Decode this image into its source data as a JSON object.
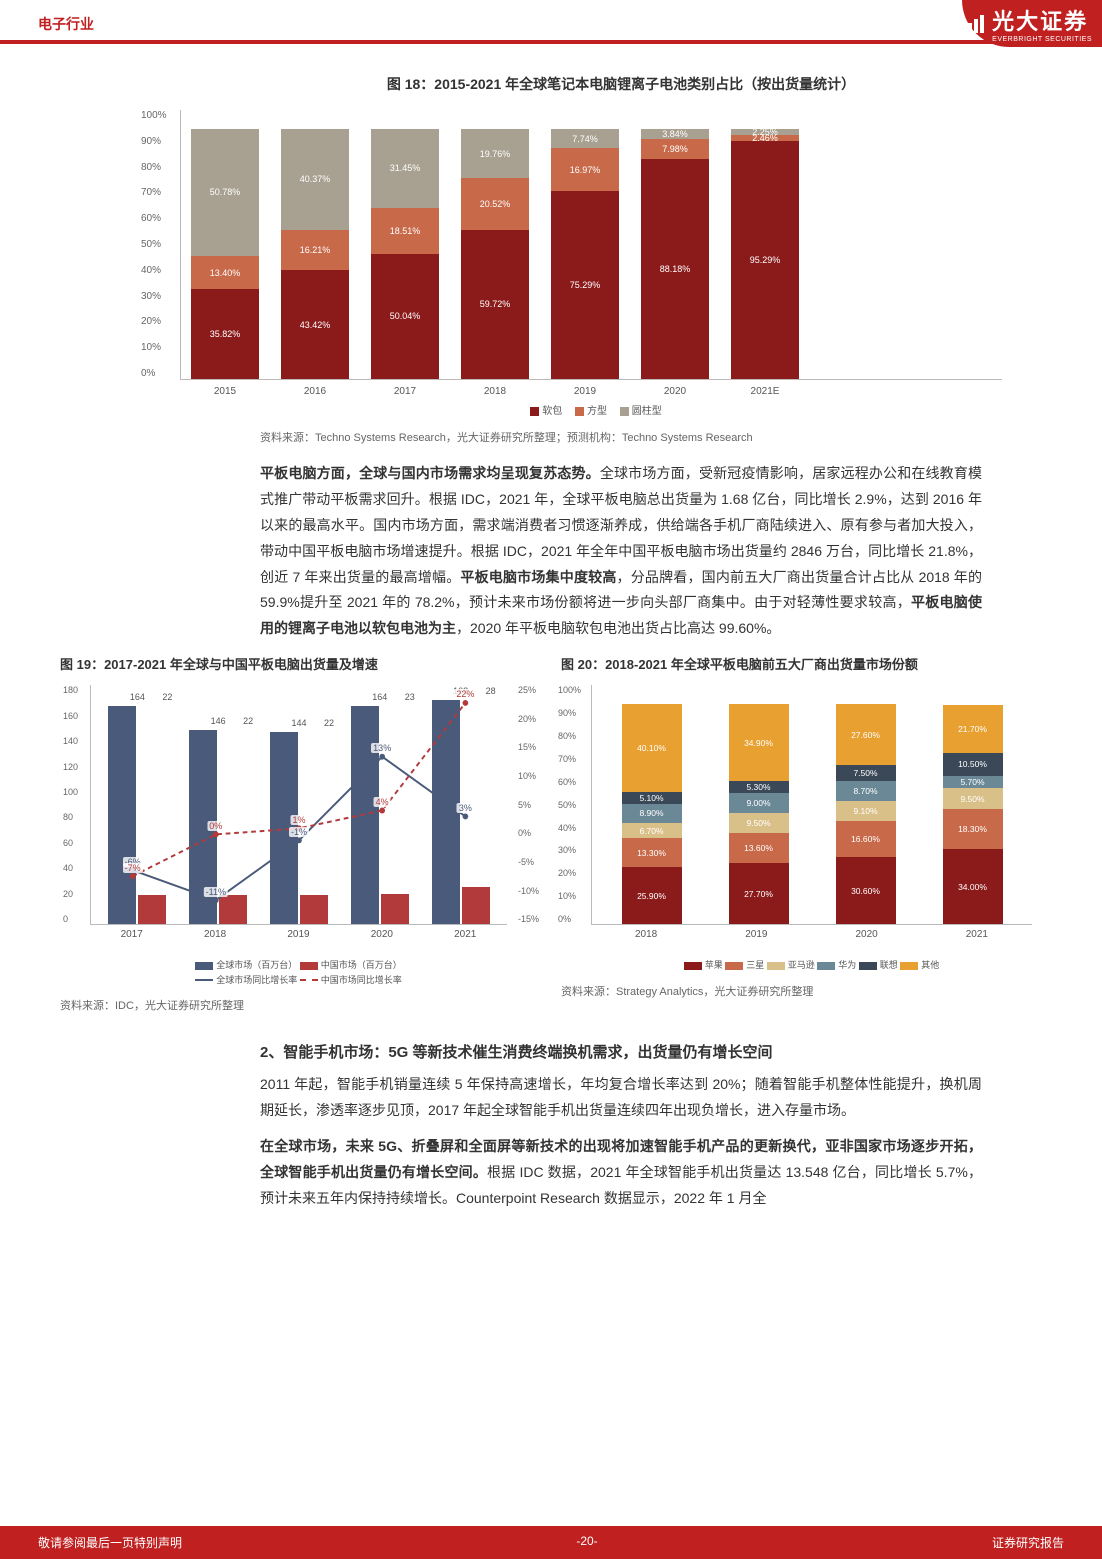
{
  "header": {
    "industry": "电子行业"
  },
  "logo": {
    "name": "光大证券",
    "sub": "EVERBRIGHT SECURITIES"
  },
  "chart18": {
    "title": "图 18：2015-2021 年全球笔记本电脑锂离子电池类别占比（按出货量统计）",
    "type": "stacked-bar",
    "ylim": [
      0,
      100
    ],
    "ytick_step": 10,
    "categories": [
      "2015",
      "2016",
      "2017",
      "2018",
      "2019",
      "2020",
      "2021E"
    ],
    "series_names": [
      "软包",
      "方型",
      "圆柱型"
    ],
    "series_colors": [
      "#8b1a1a",
      "#c86a4a",
      "#a8a090"
    ],
    "data": [
      {
        "soft": 35.82,
        "pris": 13.4,
        "cyl": 50.78
      },
      {
        "soft": 43.42,
        "pris": 16.21,
        "cyl": 40.37
      },
      {
        "soft": 50.04,
        "pris": 18.51,
        "cyl": 31.45
      },
      {
        "soft": 59.72,
        "pris": 20.52,
        "cyl": 19.76
      },
      {
        "soft": 75.29,
        "pris": 16.97,
        "cyl": 7.74
      },
      {
        "soft": 88.18,
        "pris": 7.98,
        "cyl": 3.84
      },
      {
        "soft": 95.29,
        "pris": 2.46,
        "cyl": 2.25
      }
    ],
    "source": "资料来源：Techno Systems Research，光大证券研究所整理；预测机构：Techno Systems Research"
  },
  "para1": "<b>平板电脑方面，全球与国内市场需求均呈现复苏态势。</b>全球市场方面，受新冠疫情影响，居家远程办公和在线教育模式推广带动平板需求回升。根据 IDC，2021 年，全球平板电脑总出货量为 1.68 亿台，同比增长 2.9%，达到 2016 年以来的最高水平。国内市场方面，需求端消费者习惯逐渐养成，供给端各手机厂商陆续进入、原有参与者加大投入，带动中国平板电脑市场增速提升。根据 IDC，2021 年全年中国平板电脑市场出货量约 2846 万台，同比增长 21.8%，创近 7 年来出货量的最高增幅。<b>平板电脑市场集中度较高</b>，分品牌看，国内前五大厂商出货量合计占比从 2018 年的 59.9%提升至 2021 年的 78.2%，预计未来市场份额将进一步向头部厂商集中。由于对轻薄性要求较高，<b>平板电脑使用的锂离子电池以软包电池为主</b>，2020 年平板电脑软包电池出货占比高达 99.60%。",
  "chart19": {
    "title": "图 19：2017-2021 年全球与中国平板电脑出货量及增速",
    "type": "bar-line-combo",
    "categories": [
      "2017",
      "2018",
      "2019",
      "2020",
      "2021"
    ],
    "y_left_lim": [
      0,
      180
    ],
    "y_left_step": 20,
    "y_right_lim": [
      -15,
      25
    ],
    "y_right_step": 5,
    "bar_colors": [
      "#4a5a7a",
      "#b23a3a"
    ],
    "series": {
      "global_ship": [
        164,
        146,
        144,
        164,
        168
      ],
      "china_ship": [
        22,
        22,
        22,
        23,
        28
      ],
      "global_growth": [
        -6,
        -11,
        -1,
        13,
        3
      ],
      "china_growth": [
        -7,
        0,
        1,
        4,
        22
      ]
    },
    "legend": [
      "全球市场（百万台）",
      "中国市场（百万台）",
      "全球市场同比增长率",
      "中国市场同比增长率"
    ],
    "source": "资料来源：IDC，光大证券研究所整理"
  },
  "chart20": {
    "title": "图 20：2018-2021 年全球平板电脑前五大厂商出货量市场份额",
    "type": "stacked-bar",
    "categories": [
      "2018",
      "2019",
      "2020",
      "2021"
    ],
    "series_names": [
      "苹果",
      "三星",
      "亚马逊",
      "华为",
      "联想",
      "其他"
    ],
    "series_colors": [
      "#8b1a1a",
      "#c86a4a",
      "#d9c088",
      "#6a8896",
      "#3a4858",
      "#e8a030"
    ],
    "data": [
      {
        "apple": 25.9,
        "samsung": 13.3,
        "amazon": 6.7,
        "huawei": 8.9,
        "lenovo": 5.1,
        "other": 40.1
      },
      {
        "apple": 27.7,
        "samsung": 13.6,
        "amazon": 9.5,
        "huawei": 9.0,
        "lenovo": 5.3,
        "other": 34.9
      },
      {
        "apple": 30.6,
        "samsung": 16.6,
        "amazon": 9.1,
        "huawei": 8.7,
        "lenovo": 7.5,
        "other": 27.6
      },
      {
        "apple": 34.0,
        "samsung": 18.3,
        "amazon": 9.5,
        "huawei": 5.7,
        "lenovo": 10.5,
        "other": 21.7
      }
    ],
    "source": "资料来源：Strategy Analytics，光大证券研究所整理"
  },
  "section2": {
    "title": "2、智能手机市场：5G 等新技术催生消费终端换机需求，出货量仍有增长空间",
    "p1": "2011 年起，智能手机销量连续 5 年保持高速增长，年均复合增长率达到 20%；随着智能手机整体性能提升，换机周期延长，渗透率逐步见顶，2017 年起全球智能手机出货量连续四年出现负增长，进入存量市场。",
    "p2": "<b>在全球市场，未来 5G、折叠屏和全面屏等新技术的出现将加速智能手机产品的更新换代，亚非国家市场逐步开拓，全球智能手机出货量仍有增长空间。</b>根据 IDC 数据，2021 年全球智能手机出货量达 13.548 亿台，同比增长 5.7%，预计未来五年内保持持续增长。Counterpoint Research 数据显示，2022 年 1 月全"
  },
  "footer": {
    "left": "敬请参阅最后一页特别声明",
    "center": "-20-",
    "right": "证券研究报告"
  }
}
